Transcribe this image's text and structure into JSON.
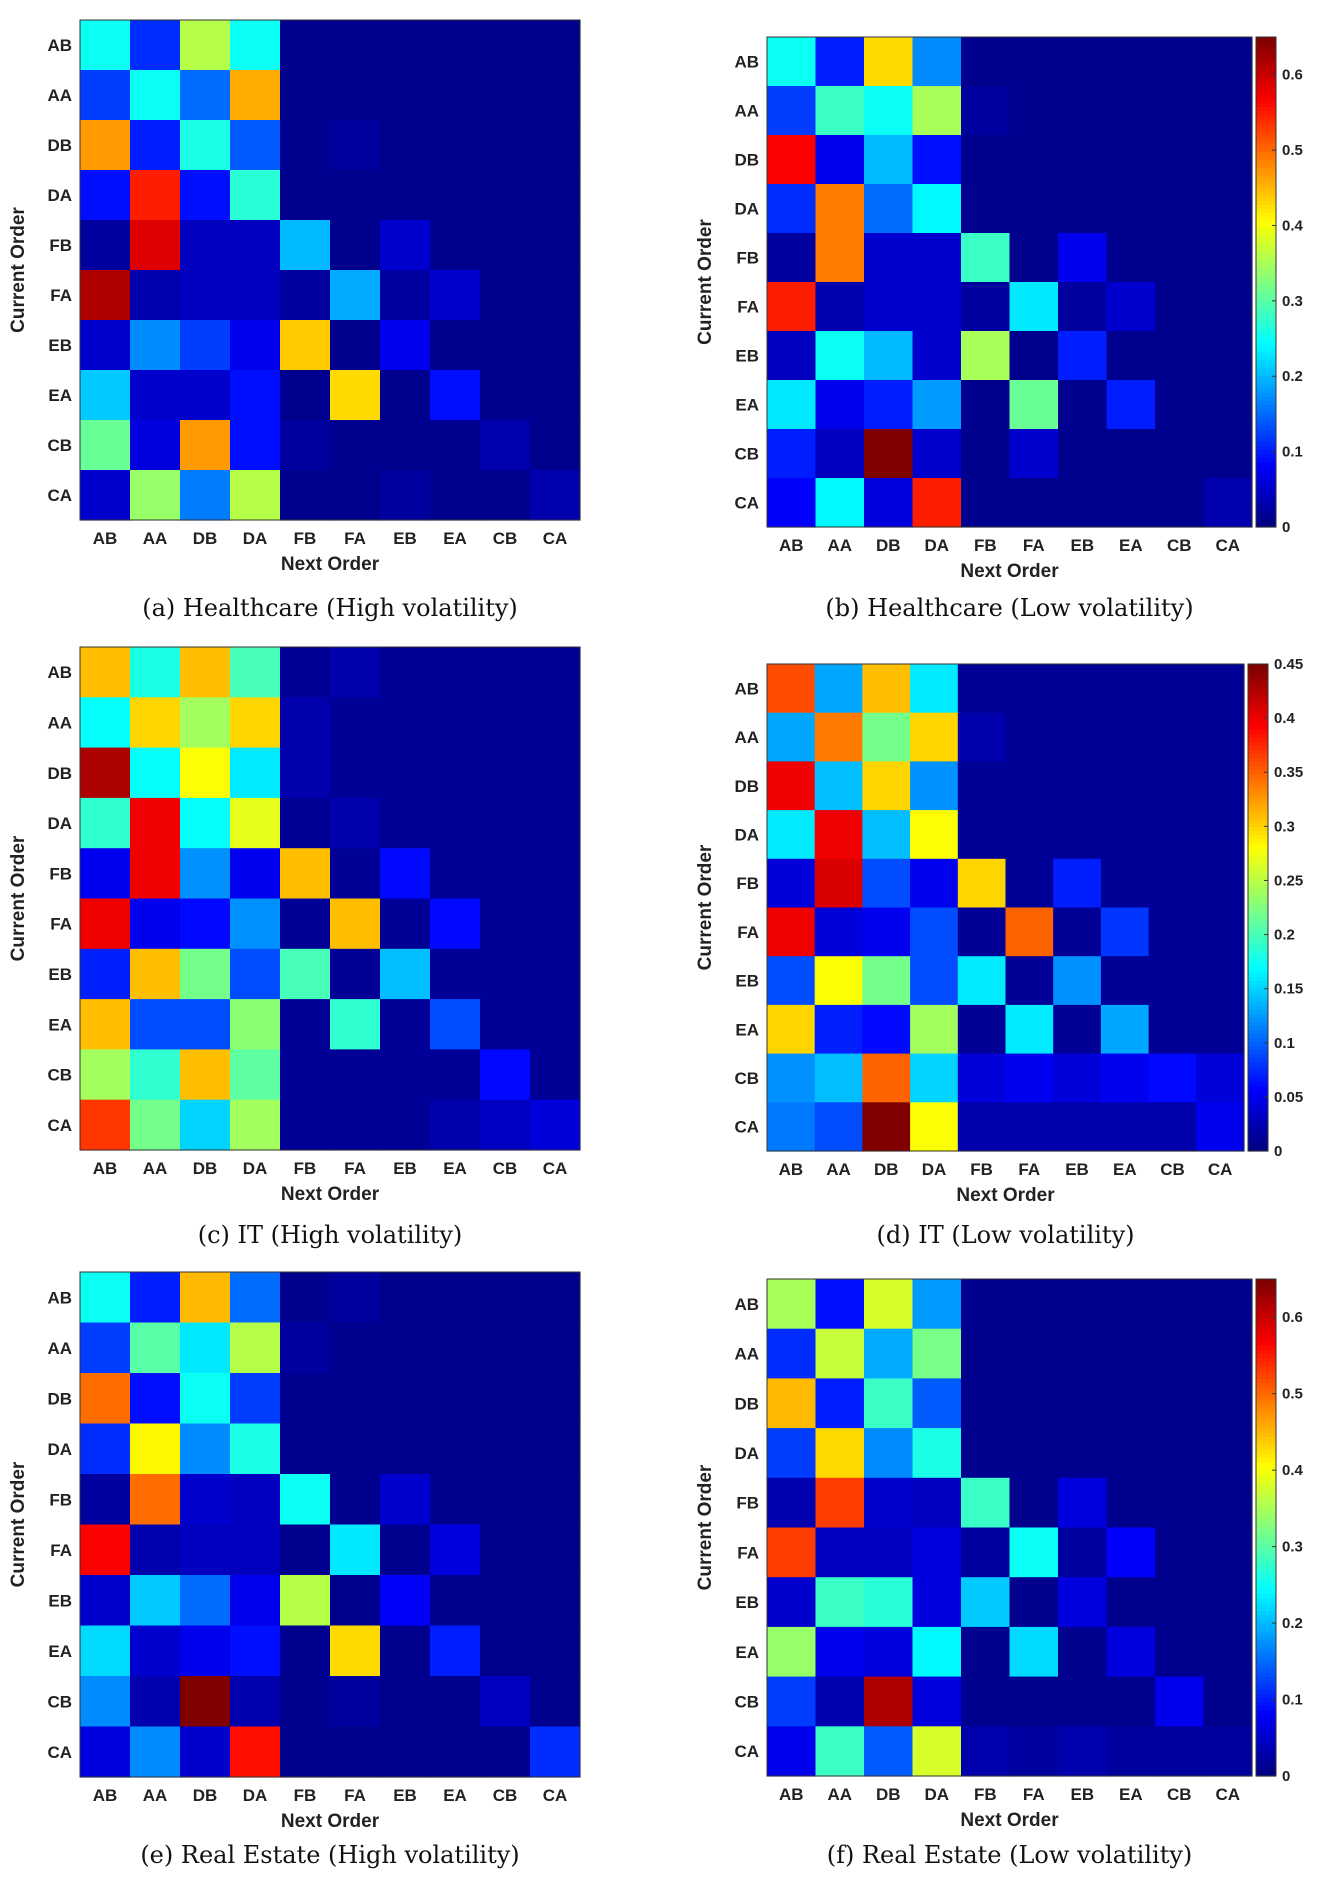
{
  "chart_data": [
    {
      "type": "heatmap",
      "caption": "(a) Healthcare (High volatility)",
      "xlabel": "Next Order",
      "ylabel": "Current Order",
      "x_categories": [
        "AB",
        "AA",
        "DB",
        "DA",
        "FB",
        "FA",
        "EB",
        "EA",
        "CB",
        "CA"
      ],
      "y_categories": [
        "AB",
        "AA",
        "DB",
        "DA",
        "FB",
        "FA",
        "EB",
        "EA",
        "CB",
        "CA"
      ],
      "colormap": "jet",
      "clim": [
        0,
        0.65
      ],
      "colorbar": false,
      "values": [
        [
          0.25,
          0.11,
          0.36,
          0.25,
          0.01,
          0.01,
          0.01,
          0.01,
          0.01,
          0.01
        ],
        [
          0.12,
          0.25,
          0.15,
          0.46,
          0.01,
          0.01,
          0.01,
          0.01,
          0.01,
          0.01
        ],
        [
          0.47,
          0.1,
          0.26,
          0.14,
          0.01,
          0.02,
          0.01,
          0.01,
          0.01,
          0.01
        ],
        [
          0.09,
          0.55,
          0.09,
          0.27,
          0.01,
          0.01,
          0.01,
          0.01,
          0.01,
          0.01
        ],
        [
          0.02,
          0.59,
          0.04,
          0.04,
          0.2,
          0.01,
          0.05,
          0.01,
          0.01,
          0.01
        ],
        [
          0.62,
          0.03,
          0.04,
          0.04,
          0.02,
          0.19,
          0.02,
          0.05,
          0.01,
          0.01
        ],
        [
          0.05,
          0.17,
          0.12,
          0.07,
          0.44,
          0.01,
          0.07,
          0.01,
          0.01,
          0.01
        ],
        [
          0.21,
          0.05,
          0.05,
          0.09,
          0.01,
          0.43,
          0.01,
          0.09,
          0.01,
          0.01
        ],
        [
          0.31,
          0.06,
          0.47,
          0.09,
          0.02,
          0.01,
          0.01,
          0.01,
          0.03,
          0.01
        ],
        [
          0.05,
          0.34,
          0.16,
          0.36,
          0.01,
          0.01,
          0.02,
          0.01,
          0.01,
          0.03
        ]
      ]
    },
    {
      "type": "heatmap",
      "caption": "(b) Healthcare (Low volatility)",
      "xlabel": "Next Order",
      "ylabel": "Current Order",
      "x_categories": [
        "AB",
        "AA",
        "DB",
        "DA",
        "FB",
        "FA",
        "EB",
        "EA",
        "CB",
        "CA"
      ],
      "y_categories": [
        "AB",
        "AA",
        "DB",
        "DA",
        "FB",
        "FA",
        "EB",
        "EA",
        "CB",
        "CA"
      ],
      "colormap": "jet",
      "clim": [
        0,
        0.65
      ],
      "colorbar": true,
      "colorbar_ticks": [
        "0",
        "0.1",
        "0.2",
        "0.3",
        "0.4",
        "0.5",
        "0.6"
      ],
      "colorbar_tick_values": [
        0,
        0.1,
        0.2,
        0.3,
        0.4,
        0.5,
        0.6
      ],
      "values": [
        [
          0.25,
          0.1,
          0.43,
          0.17,
          0.01,
          0.01,
          0.01,
          0.01,
          0.01,
          0.01
        ],
        [
          0.12,
          0.28,
          0.25,
          0.35,
          0.02,
          0.01,
          0.01,
          0.01,
          0.01,
          0.01
        ],
        [
          0.57,
          0.07,
          0.2,
          0.09,
          0.01,
          0.01,
          0.01,
          0.01,
          0.01,
          0.01
        ],
        [
          0.11,
          0.49,
          0.15,
          0.24,
          0.01,
          0.01,
          0.01,
          0.01,
          0.01,
          0.01
        ],
        [
          0.02,
          0.49,
          0.05,
          0.05,
          0.28,
          0.01,
          0.07,
          0.01,
          0.01,
          0.01
        ],
        [
          0.55,
          0.03,
          0.05,
          0.05,
          0.02,
          0.23,
          0.02,
          0.05,
          0.01,
          0.01
        ],
        [
          0.04,
          0.25,
          0.2,
          0.05,
          0.35,
          0.01,
          0.1,
          0.01,
          0.01,
          0.01
        ],
        [
          0.23,
          0.07,
          0.1,
          0.18,
          0.01,
          0.31,
          0.01,
          0.1,
          0.01,
          0.01
        ],
        [
          0.1,
          0.04,
          0.65,
          0.05,
          0.01,
          0.05,
          0.01,
          0.01,
          0.01,
          0.01
        ],
        [
          0.08,
          0.24,
          0.06,
          0.55,
          0.01,
          0.01,
          0.01,
          0.01,
          0.01,
          0.03
        ]
      ]
    },
    {
      "type": "heatmap",
      "caption": "(c) IT (High volatility)",
      "xlabel": "Next Order",
      "ylabel": "Current Order",
      "x_categories": [
        "AB",
        "AA",
        "DB",
        "DA",
        "FB",
        "FA",
        "EB",
        "EA",
        "CB",
        "CA"
      ],
      "y_categories": [
        "AB",
        "AA",
        "DB",
        "DA",
        "FB",
        "FA",
        "EB",
        "EA",
        "CB",
        "CA"
      ],
      "colormap": "jet",
      "clim": [
        0,
        0.45
      ],
      "colorbar": false,
      "values": [
        [
          0.31,
          0.18,
          0.31,
          0.2,
          0.01,
          0.02,
          0.01,
          0.01,
          0.01,
          0.01
        ],
        [
          0.17,
          0.3,
          0.24,
          0.3,
          0.02,
          0.01,
          0.01,
          0.01,
          0.01,
          0.01
        ],
        [
          0.43,
          0.17,
          0.28,
          0.16,
          0.02,
          0.01,
          0.01,
          0.01,
          0.01,
          0.01
        ],
        [
          0.19,
          0.4,
          0.17,
          0.27,
          0.01,
          0.02,
          0.01,
          0.01,
          0.01,
          0.01
        ],
        [
          0.05,
          0.4,
          0.12,
          0.05,
          0.31,
          0.01,
          0.06,
          0.01,
          0.01,
          0.01
        ],
        [
          0.4,
          0.05,
          0.06,
          0.12,
          0.01,
          0.31,
          0.01,
          0.06,
          0.01,
          0.01
        ],
        [
          0.07,
          0.31,
          0.22,
          0.09,
          0.2,
          0.01,
          0.14,
          0.01,
          0.01,
          0.01
        ],
        [
          0.31,
          0.09,
          0.09,
          0.23,
          0.01,
          0.19,
          0.01,
          0.09,
          0.01,
          0.01
        ],
        [
          0.24,
          0.19,
          0.31,
          0.21,
          0.01,
          0.01,
          0.01,
          0.01,
          0.06,
          0.01
        ],
        [
          0.37,
          0.22,
          0.15,
          0.24,
          0.01,
          0.01,
          0.01,
          0.02,
          0.03,
          0.04
        ]
      ]
    },
    {
      "type": "heatmap",
      "caption": "(d) IT (Low volatility)",
      "xlabel": "Next Order",
      "ylabel": "Current Order",
      "x_categories": [
        "AB",
        "AA",
        "DB",
        "DA",
        "FB",
        "FA",
        "EB",
        "EA",
        "CB",
        "CA"
      ],
      "y_categories": [
        "AB",
        "AA",
        "DB",
        "DA",
        "FB",
        "FA",
        "EB",
        "EA",
        "CB",
        "CA"
      ],
      "colormap": "jet",
      "clim": [
        0,
        0.45
      ],
      "colorbar": true,
      "colorbar_ticks": [
        "0",
        "0.05",
        "0.1",
        "0.15",
        "0.2",
        "0.25",
        "0.3",
        "0.35",
        "0.4",
        "0.45"
      ],
      "colorbar_tick_values": [
        0,
        0.05,
        0.1,
        0.15,
        0.2,
        0.25,
        0.3,
        0.35,
        0.4,
        0.45
      ],
      "values": [
        [
          0.36,
          0.13,
          0.31,
          0.16,
          0.01,
          0.01,
          0.01,
          0.01,
          0.01,
          0.01
        ],
        [
          0.13,
          0.34,
          0.22,
          0.3,
          0.02,
          0.01,
          0.01,
          0.01,
          0.01,
          0.01
        ],
        [
          0.4,
          0.14,
          0.3,
          0.12,
          0.01,
          0.01,
          0.01,
          0.01,
          0.01,
          0.01
        ],
        [
          0.16,
          0.4,
          0.14,
          0.28,
          0.01,
          0.01,
          0.01,
          0.01,
          0.01,
          0.01
        ],
        [
          0.04,
          0.41,
          0.09,
          0.05,
          0.3,
          0.01,
          0.07,
          0.01,
          0.01,
          0.01
        ],
        [
          0.4,
          0.04,
          0.05,
          0.09,
          0.01,
          0.35,
          0.01,
          0.08,
          0.01,
          0.01
        ],
        [
          0.09,
          0.28,
          0.22,
          0.09,
          0.16,
          0.01,
          0.12,
          0.01,
          0.01,
          0.01
        ],
        [
          0.3,
          0.07,
          0.06,
          0.24,
          0.01,
          0.16,
          0.01,
          0.13,
          0.01,
          0.01
        ],
        [
          0.12,
          0.14,
          0.35,
          0.15,
          0.04,
          0.05,
          0.04,
          0.05,
          0.06,
          0.04
        ],
        [
          0.11,
          0.09,
          0.45,
          0.28,
          0.02,
          0.02,
          0.02,
          0.02,
          0.02,
          0.05
        ]
      ]
    },
    {
      "type": "heatmap",
      "caption": "(e) Real Estate (High volatility)",
      "xlabel": "Next Order",
      "ylabel": "Current Order",
      "x_categories": [
        "AB",
        "AA",
        "DB",
        "DA",
        "FB",
        "FA",
        "EB",
        "EA",
        "CB",
        "CA"
      ],
      "y_categories": [
        "AB",
        "AA",
        "DB",
        "DA",
        "FB",
        "FA",
        "EB",
        "EA",
        "CB",
        "CA"
      ],
      "colormap": "jet",
      "clim": [
        0,
        0.65
      ],
      "colorbar": false,
      "values": [
        [
          0.25,
          0.1,
          0.45,
          0.15,
          0.01,
          0.02,
          0.01,
          0.01,
          0.01,
          0.01
        ],
        [
          0.12,
          0.3,
          0.23,
          0.36,
          0.02,
          0.01,
          0.01,
          0.01,
          0.01,
          0.01
        ],
        [
          0.5,
          0.09,
          0.25,
          0.12,
          0.01,
          0.01,
          0.01,
          0.01,
          0.01,
          0.01
        ],
        [
          0.11,
          0.41,
          0.17,
          0.26,
          0.01,
          0.01,
          0.01,
          0.01,
          0.01,
          0.01
        ],
        [
          0.02,
          0.5,
          0.05,
          0.04,
          0.25,
          0.01,
          0.05,
          0.01,
          0.01,
          0.01
        ],
        [
          0.57,
          0.03,
          0.04,
          0.04,
          0.01,
          0.23,
          0.01,
          0.06,
          0.01,
          0.01
        ],
        [
          0.05,
          0.21,
          0.15,
          0.07,
          0.36,
          0.01,
          0.08,
          0.01,
          0.01,
          0.01
        ],
        [
          0.22,
          0.05,
          0.07,
          0.09,
          0.01,
          0.43,
          0.01,
          0.1,
          0.01,
          0.01
        ],
        [
          0.17,
          0.03,
          0.65,
          0.03,
          0.01,
          0.02,
          0.01,
          0.01,
          0.04,
          0.01
        ],
        [
          0.06,
          0.17,
          0.05,
          0.56,
          0.01,
          0.01,
          0.01,
          0.01,
          0.01,
          0.11
        ]
      ]
    },
    {
      "type": "heatmap",
      "caption": "(f) Real Estate (Low volatility)",
      "xlabel": "Next Order",
      "ylabel": "Current Order",
      "x_categories": [
        "AB",
        "AA",
        "DB",
        "DA",
        "FB",
        "FA",
        "EB",
        "EA",
        "CB",
        "CA"
      ],
      "y_categories": [
        "AB",
        "AA",
        "DB",
        "DA",
        "FB",
        "FA",
        "EB",
        "EA",
        "CB",
        "CA"
      ],
      "colormap": "jet",
      "clim": [
        0,
        0.65
      ],
      "colorbar": true,
      "colorbar_ticks": [
        "0",
        "0.1",
        "0.2",
        "0.3",
        "0.4",
        "0.5",
        "0.6"
      ],
      "colorbar_tick_values": [
        0,
        0.1,
        0.2,
        0.3,
        0.4,
        0.5,
        0.6
      ],
      "values": [
        [
          0.35,
          0.09,
          0.38,
          0.18,
          0.01,
          0.01,
          0.01,
          0.01,
          0.01,
          0.01
        ],
        [
          0.11,
          0.37,
          0.19,
          0.32,
          0.01,
          0.01,
          0.01,
          0.01,
          0.01,
          0.01
        ],
        [
          0.45,
          0.1,
          0.28,
          0.14,
          0.01,
          0.01,
          0.01,
          0.01,
          0.01,
          0.01
        ],
        [
          0.12,
          0.43,
          0.17,
          0.26,
          0.01,
          0.01,
          0.01,
          0.01,
          0.01,
          0.01
        ],
        [
          0.03,
          0.53,
          0.05,
          0.04,
          0.28,
          0.01,
          0.06,
          0.01,
          0.01,
          0.01
        ],
        [
          0.53,
          0.04,
          0.04,
          0.06,
          0.02,
          0.25,
          0.02,
          0.08,
          0.01,
          0.01
        ],
        [
          0.05,
          0.28,
          0.27,
          0.06,
          0.21,
          0.01,
          0.06,
          0.01,
          0.01,
          0.01
        ],
        [
          0.34,
          0.07,
          0.06,
          0.24,
          0.01,
          0.22,
          0.01,
          0.06,
          0.01,
          0.01
        ],
        [
          0.12,
          0.03,
          0.62,
          0.06,
          0.01,
          0.01,
          0.01,
          0.01,
          0.07,
          0.01
        ],
        [
          0.07,
          0.28,
          0.14,
          0.38,
          0.03,
          0.02,
          0.03,
          0.02,
          0.02,
          0.02
        ]
      ]
    }
  ]
}
